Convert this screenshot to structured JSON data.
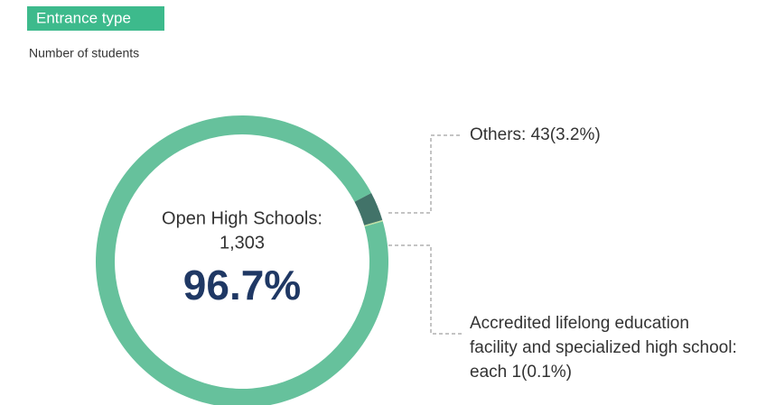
{
  "chart_data": {
    "type": "donut",
    "title": "Entrance type",
    "subtitle": "Number of students",
    "values": [
      1303,
      43,
      1,
      1
    ],
    "colors": [
      "#66c19c",
      "#427369",
      "#b9dc9a",
      "#b9dc9a"
    ],
    "center": {
      "label": "Open High Schools:",
      "value_label": "1,303",
      "percent_label": "96.7%"
    },
    "annotations": [
      {
        "text": "Others: 43(3.2%)"
      },
      {
        "text": "Accredited lifelong education facility and specialized high school: each 1(0.1%)"
      }
    ]
  }
}
